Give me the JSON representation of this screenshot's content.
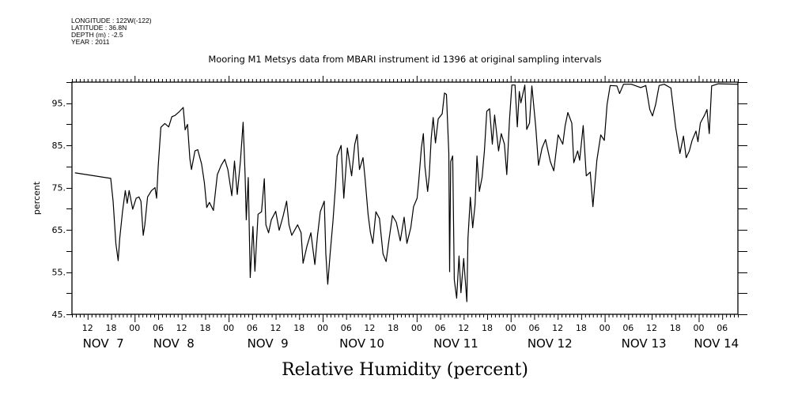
{
  "header": {
    "longitude": "LONGITUDE : 122W(-122)",
    "latitude": "LATITUDE : 36.8N",
    "depth": "DEPTH (m) : -2.5",
    "year": "YEAR : 2011"
  },
  "chart_data": {
    "type": "line",
    "title": "Mooring M1 Metsys data from MBARI instrument id 1396 at original sampling intervals",
    "xlabel": "Relative Humidity (percent)",
    "ylabel": "percent",
    "x_units": "hours since 2011-11-07 00:00",
    "xlim": [
      8,
      178
    ],
    "ylim": [
      45,
      100
    ],
    "y_ticks": [
      45,
      55,
      65,
      75,
      85,
      95
    ],
    "y_tick_labels": [
      "45.",
      "55.",
      "65.",
      "75.",
      "85.",
      "95."
    ],
    "x_hour_ticks": [
      12,
      18,
      24,
      30,
      36,
      42,
      48,
      54,
      60,
      66,
      72,
      78,
      84,
      90,
      96,
      102,
      108,
      114,
      120,
      126,
      132,
      138,
      144,
      150,
      156,
      162,
      168,
      174
    ],
    "x_hour_labels": [
      "12",
      "18",
      "00",
      "06",
      "12",
      "18",
      "00",
      "06",
      "12",
      "18",
      "00",
      "06",
      "12",
      "18",
      "00",
      "06",
      "12",
      "18",
      "00",
      "06",
      "12",
      "18",
      "00",
      "06",
      "12",
      "18",
      "00",
      "06"
    ],
    "day_labels": [
      {
        "label": "NOV  7",
        "h": 16
      },
      {
        "label": "NOV  8",
        "h": 34
      },
      {
        "label": "NOV  9",
        "h": 58
      },
      {
        "label": "NOV 10",
        "h": 82
      },
      {
        "label": "NOV 11",
        "h": 106
      },
      {
        "label": "NOV 12",
        "h": 130
      },
      {
        "label": "NOV 13",
        "h": 154
      },
      {
        "label": "NOV 14",
        "h": 172.5
      }
    ],
    "series": [
      {
        "name": "Relative Humidity",
        "points": [
          [
            8.8,
            78.5
          ],
          [
            17.9,
            77.2
          ],
          [
            18.5,
            71.8
          ],
          [
            19.2,
            61.8
          ],
          [
            19.8,
            57.7
          ],
          [
            20.2,
            63.0
          ],
          [
            20.9,
            69.3
          ],
          [
            21.6,
            74.3
          ],
          [
            22.1,
            71.3
          ],
          [
            22.6,
            74.3
          ],
          [
            23.5,
            69.9
          ],
          [
            24.4,
            72.5
          ],
          [
            25.1,
            72.8
          ],
          [
            25.6,
            71.8
          ],
          [
            26.2,
            63.7
          ],
          [
            26.6,
            66.2
          ],
          [
            27.3,
            72.8
          ],
          [
            28.3,
            74.3
          ],
          [
            29.2,
            75.0
          ],
          [
            29.6,
            72.5
          ],
          [
            30.0,
            79.9
          ],
          [
            30.7,
            89.3
          ],
          [
            31.7,
            90.2
          ],
          [
            32.7,
            89.4
          ],
          [
            33.5,
            91.8
          ],
          [
            34.3,
            92.1
          ],
          [
            35.4,
            93.0
          ],
          [
            36.4,
            94.0
          ],
          [
            36.9,
            88.7
          ],
          [
            37.5,
            90.0
          ],
          [
            38.1,
            81.8
          ],
          [
            38.5,
            79.3
          ],
          [
            39.4,
            83.7
          ],
          [
            40.1,
            84.0
          ],
          [
            41.1,
            80.6
          ],
          [
            41.8,
            76.2
          ],
          [
            42.4,
            70.3
          ],
          [
            43.1,
            71.5
          ],
          [
            44.1,
            69.6
          ],
          [
            45.1,
            78.1
          ],
          [
            46.1,
            80.3
          ],
          [
            47.0,
            81.7
          ],
          [
            47.8,
            79.3
          ],
          [
            48.8,
            73.1
          ],
          [
            49.5,
            81.3
          ],
          [
            50.2,
            73.4
          ],
          [
            51.0,
            81.3
          ],
          [
            51.7,
            90.5
          ],
          [
            52.2,
            78.0
          ],
          [
            52.5,
            67.4
          ],
          [
            53.0,
            77.4
          ],
          [
            53.5,
            53.7
          ],
          [
            54.2,
            65.8
          ],
          [
            54.7,
            55.2
          ],
          [
            55.5,
            68.7
          ],
          [
            56.4,
            69.3
          ],
          [
            57.1,
            77.1
          ],
          [
            57.5,
            66.2
          ],
          [
            58.2,
            64.3
          ],
          [
            58.9,
            67.4
          ],
          [
            60.0,
            69.4
          ],
          [
            60.9,
            64.9
          ],
          [
            61.9,
            68.3
          ],
          [
            62.8,
            71.8
          ],
          [
            63.4,
            66.2
          ],
          [
            64.1,
            63.7
          ],
          [
            65.6,
            66.2
          ],
          [
            66.5,
            64.3
          ],
          [
            67.0,
            57.1
          ],
          [
            68.0,
            61.2
          ],
          [
            69.0,
            64.3
          ],
          [
            70.0,
            56.8
          ],
          [
            70.7,
            63.7
          ],
          [
            71.4,
            69.3
          ],
          [
            72.4,
            71.8
          ],
          [
            72.8,
            59.3
          ],
          [
            73.3,
            52.1
          ],
          [
            73.9,
            59.3
          ],
          [
            74.6,
            66.8
          ],
          [
            75.3,
            75.6
          ],
          [
            75.7,
            82.5
          ],
          [
            76.7,
            85.0
          ],
          [
            77.4,
            72.5
          ],
          [
            78.3,
            84.4
          ],
          [
            79.4,
            77.8
          ],
          [
            80.2,
            85.3
          ],
          [
            80.8,
            87.6
          ],
          [
            81.4,
            79.3
          ],
          [
            82.3,
            82.1
          ],
          [
            82.8,
            77.4
          ],
          [
            83.6,
            68.7
          ],
          [
            84.2,
            64.3
          ],
          [
            84.8,
            61.8
          ],
          [
            85.6,
            69.3
          ],
          [
            86.5,
            67.7
          ],
          [
            87.4,
            59.3
          ],
          [
            88.2,
            57.5
          ],
          [
            89.0,
            63.1
          ],
          [
            89.8,
            68.4
          ],
          [
            90.8,
            66.8
          ],
          [
            91.8,
            62.4
          ],
          [
            92.8,
            68.0
          ],
          [
            93.5,
            61.8
          ],
          [
            94.5,
            65.5
          ],
          [
            95.2,
            70.5
          ],
          [
            96.1,
            72.5
          ],
          [
            96.5,
            76.2
          ],
          [
            97.2,
            84.4
          ],
          [
            97.7,
            87.8
          ],
          [
            98.1,
            80.0
          ],
          [
            98.8,
            74.1
          ],
          [
            99.2,
            77.8
          ],
          [
            99.7,
            86.6
          ],
          [
            100.2,
            91.6
          ],
          [
            100.8,
            85.6
          ],
          [
            101.5,
            91.3
          ],
          [
            102.5,
            92.5
          ],
          [
            103.1,
            97.4
          ],
          [
            103.6,
            97.1
          ],
          [
            104.2,
            83.1
          ],
          [
            104.4,
            55.1
          ],
          [
            104.7,
            81.2
          ],
          [
            105.2,
            82.5
          ],
          [
            105.6,
            53.2
          ],
          [
            106.2,
            48.8
          ],
          [
            106.8,
            58.8
          ],
          [
            107.3,
            50.1
          ],
          [
            108.0,
            58.2
          ],
          [
            108.8,
            48.0
          ],
          [
            109.1,
            63.0
          ],
          [
            109.7,
            72.7
          ],
          [
            110.3,
            65.5
          ],
          [
            110.9,
            71.1
          ],
          [
            111.4,
            82.5
          ],
          [
            112.0,
            74.1
          ],
          [
            112.7,
            77.5
          ],
          [
            113.3,
            83.7
          ],
          [
            113.9,
            93.1
          ],
          [
            114.6,
            93.7
          ],
          [
            115.3,
            85.3
          ],
          [
            115.9,
            92.2
          ],
          [
            116.9,
            83.7
          ],
          [
            117.6,
            87.8
          ],
          [
            118.4,
            85.3
          ],
          [
            119.0,
            78.1
          ],
          [
            119.7,
            91.0
          ],
          [
            120.3,
            99.3
          ],
          [
            121.1,
            99.3
          ],
          [
            121.7,
            89.4
          ],
          [
            122.2,
            97.8
          ],
          [
            122.6,
            95.1
          ],
          [
            123.6,
            99.3
          ],
          [
            124.1,
            88.8
          ],
          [
            124.8,
            90.3
          ],
          [
            125.4,
            99.1
          ],
          [
            126.4,
            89.4
          ],
          [
            127.1,
            80.3
          ],
          [
            128.0,
            84.4
          ],
          [
            128.9,
            86.4
          ],
          [
            130.1,
            81.2
          ],
          [
            131.0,
            79.0
          ],
          [
            132.1,
            87.5
          ],
          [
            133.3,
            85.3
          ],
          [
            133.9,
            89.7
          ],
          [
            134.6,
            92.8
          ],
          [
            135.6,
            90.3
          ],
          [
            136.1,
            80.9
          ],
          [
            137.1,
            83.7
          ],
          [
            137.6,
            81.5
          ],
          [
            138.5,
            89.7
          ],
          [
            139.3,
            77.8
          ],
          [
            140.3,
            78.7
          ],
          [
            141.0,
            70.5
          ],
          [
            142.0,
            81.5
          ],
          [
            143.0,
            87.5
          ],
          [
            143.9,
            86.2
          ],
          [
            144.6,
            94.7
          ],
          [
            145.4,
            99.2
          ],
          [
            147.1,
            99.1
          ],
          [
            147.8,
            97.3
          ],
          [
            148.8,
            99.5
          ],
          [
            150.8,
            99.5
          ],
          [
            153.2,
            98.7
          ],
          [
            154.5,
            99.2
          ],
          [
            155.5,
            93.5
          ],
          [
            156.2,
            92.0
          ],
          [
            157.0,
            94.7
          ],
          [
            157.9,
            99.2
          ],
          [
            159.2,
            99.5
          ],
          [
            160.9,
            98.6
          ],
          [
            162.1,
            89.4
          ],
          [
            163.2,
            83.1
          ],
          [
            164.1,
            87.2
          ],
          [
            164.8,
            82.1
          ],
          [
            165.6,
            83.7
          ],
          [
            166.3,
            86.2
          ],
          [
            167.3,
            88.4
          ],
          [
            167.8,
            85.9
          ],
          [
            168.4,
            90.3
          ],
          [
            169.5,
            92.2
          ],
          [
            170.1,
            93.5
          ],
          [
            170.7,
            87.8
          ],
          [
            171.3,
            99.1
          ],
          [
            173.0,
            99.6
          ],
          [
            177.9,
            99.5
          ]
        ]
      }
    ]
  }
}
